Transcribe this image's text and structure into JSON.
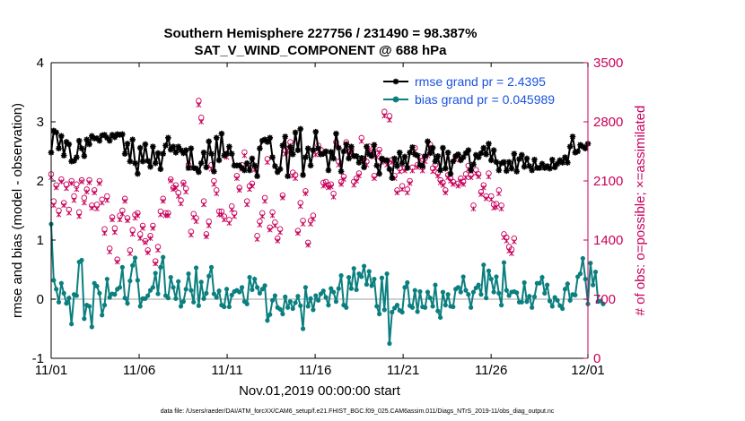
{
  "colors": {
    "rmse": "#000000",
    "bias": "#0b7f7f",
    "obs": "#c8005a",
    "zero": "#bfbfbf",
    "legend_text": "#1a52e0"
  },
  "chart_data": {
    "type": "line",
    "title_line1": "Southern Hemisphere 227756 / 231490 = 98.387%",
    "title_line2": "SAT_V_WIND_COMPONENT @ 688 hPa",
    "xlabel": "Nov.01,2019 00:00:00 start",
    "ylabel_left": "rmse and bias (model - observation)",
    "ylabel_right": "# of obs: o=possible; ×=assimilated",
    "footer": "data file: /Users/raeder/DAI/ATM_forcXX/CAM6_setup/f.e21.FHIST_BGC.f09_025.CAM6assim.011/Diags_NTrS_2019-11/obs_diag_output.nc",
    "xlim": [
      0,
      30.5
    ],
    "ylim_left": [
      -1,
      4
    ],
    "ylim_right": [
      0,
      3500
    ],
    "x_ticks": [
      0,
      5,
      10,
      15,
      20,
      25,
      30.5
    ],
    "x_tick_labels": [
      "11/01",
      "11/06",
      "11/11",
      "11/16",
      "11/21",
      "11/26",
      "12/01"
    ],
    "y_left_ticks": [
      -1,
      0,
      1,
      2,
      3,
      4
    ],
    "y_left_tick_labels": [
      "-1",
      "0",
      "1",
      "2",
      "3",
      "4"
    ],
    "y_right_ticks": [
      0,
      700,
      1400,
      2100,
      2800,
      3500
    ],
    "y_right_tick_labels": [
      "0",
      "700",
      "1400",
      "2100",
      "2800",
      "3500"
    ],
    "legend": [
      {
        "label": "rmse grand pr = 2.4395",
        "series": "rmse"
      },
      {
        "label": "bias grand pr = 0.045989",
        "series": "bias"
      }
    ],
    "series": [
      {
        "name": "rmse",
        "values": [
          2.48,
          2.85,
          2.82,
          2.55,
          2.76,
          2.43,
          2.66,
          2.62,
          2.33,
          2.34,
          2.4,
          2.68,
          2.55,
          2.42,
          2.7,
          2.62,
          2.76,
          2.72,
          2.72,
          2.68,
          2.77,
          2.78,
          2.73,
          2.68,
          2.78,
          2.74,
          2.79,
          2.78,
          2.79,
          2.46,
          2.63,
          2.33,
          2.7,
          2.3,
          2.12,
          2.56,
          2.33,
          2.62,
          2.34,
          2.24,
          2.58,
          2.3,
          2.47,
          2.2,
          2.46,
          2.6,
          2.73,
          2.53,
          2.58,
          2.48,
          2.58,
          2.52,
          2.47,
          2.52,
          2.22,
          2.55,
          2.22,
          2.21,
          2.15,
          2.3,
          2.48,
          2.23,
          2.67,
          2.46,
          2.16,
          2.73,
          2.35,
          2.8,
          2.43,
          2.46,
          2.58,
          2.46,
          2.26,
          2.26,
          2.26,
          2.22,
          2.18,
          2.3,
          2.18,
          2.38,
          2.26,
          2.08,
          2.55,
          2.68,
          2.7,
          2.66,
          2.73,
          2.4,
          2.25,
          2.15,
          2.2,
          2.6,
          2.75,
          2.08,
          2.57,
          2.45,
          2.82,
          2.52,
          2.88,
          2.1,
          2.4,
          2.55,
          2.26,
          2.52,
          2.83,
          2.55,
          2.45,
          2.46,
          2.5,
          2.18,
          2.49,
          2.38,
          2.8,
          2.56,
          2.16,
          2.5,
          2.62,
          2.38,
          2.58,
          2.42,
          2.42,
          2.31,
          2.39,
          2.23,
          2.58,
          2.45,
          2.42,
          2.61,
          2.26,
          2.12,
          2.38,
          2.35,
          2.35,
          2.2,
          2.05,
          2.38,
          2.25,
          2.48,
          2.3,
          2.41,
          2.22,
          2.48,
          2.57,
          2.45,
          2.43,
          2.27,
          2.25,
          2.42,
          2.67,
          2.47,
          2.56,
          2.33,
          2.42,
          2.18,
          2.56,
          2.21,
          2.48,
          2.12,
          2.33,
          2.42,
          2.45,
          2.35,
          2.4,
          2.47,
          2.52,
          2.18,
          2.28,
          2.44,
          2.4,
          2.47,
          2.56,
          2.45,
          2.63,
          2.35,
          2.52,
          2.32,
          2.18,
          2.3,
          2.32,
          2.17,
          2.32,
          2.21,
          2.46,
          2.16,
          2.37,
          2.44,
          2.24,
          2.38,
          2.25,
          2.18,
          2.36,
          2.22,
          2.22,
          2.29,
          2.22,
          2.25,
          2.21,
          2.36,
          2.23,
          2.29,
          2.35,
          2.31,
          2.4,
          2.31,
          2.58,
          2.75,
          2.48,
          2.5,
          2.61,
          2.58,
          2.55,
          2.63
        ]
      },
      {
        "name": "bias",
        "values": [
          1.27,
          0.32,
          0.17,
          -0.05,
          0.27,
          0.1,
          -0.07,
          0.02,
          -0.42,
          0.08,
          0.06,
          0.63,
          0.66,
          -0.33,
          -0.1,
          -0.12,
          -0.47,
          0.27,
          0.22,
          0.1,
          -0.27,
          -0.1,
          0.34,
          0.03,
          0.09,
          0.08,
          0.17,
          0.2,
          0.54,
          0.02,
          -0.07,
          0.31,
          0.57,
          0.7,
          0.32,
          -0.12,
          0.01,
          0.01,
          0.06,
          0.15,
          0.2,
          0.44,
          0.09,
          0.54,
          0.71,
          0.06,
          0.02,
          0.37,
          0.2,
          0.01,
          0.3,
          -0.12,
          -0.04,
          0.17,
          0.43,
          0.15,
          -0.05,
          0.53,
          -0.11,
          0.29,
          0.01,
          0.1,
          0.39,
          0.54,
          0.09,
          0.03,
          0.14,
          -0.1,
          -0.13,
          0.17,
          -0.13,
          0.07,
          0.13,
          0.15,
          0.12,
          0.2,
          -0.04,
          -0.08,
          0.37,
          0.16,
          0.34,
          0.2,
          0.1,
          0.17,
          0.23,
          -0.36,
          -0.26,
          -0.02,
          0.06,
          -0.14,
          -0.17,
          -0.25,
          0.04,
          -0.14,
          -0.04,
          -0.16,
          -0.06,
          0.05,
          -0.11,
          -0.5,
          0.2,
          -0.12,
          0.01,
          -0.18,
          0.06,
          -0.02,
          0.09,
          0.14,
          0.03,
          -0.1,
          0.18,
          0.12,
          -0.04,
          0.18,
          0.4,
          -0.1,
          -0.14,
          0.37,
          0.18,
          0.52,
          0.16,
          0.43,
          0.38,
          0.56,
          0.25,
          0.47,
          0.23,
          0.34,
          -0.12,
          -0.25,
          0.36,
          -0.18,
          0.43,
          -0.75,
          -0.22,
          -0.15,
          -0.1,
          -0.19,
          -0.22,
          0.2,
          0.28,
          -0.11,
          -0.14,
          0.15,
          -0.21,
          0.13,
          -0.13,
          -0.14,
          0.12,
          0.02,
          -0.12,
          0.24,
          -0.2,
          -0.31,
          0.12,
          -0.1,
          0.08,
          -0.12,
          -0.13,
          0.17,
          0.2,
          0.12,
          0.38,
          0.15,
          0.08,
          -0.14,
          0.12,
          0.19,
          0.24,
          0.08,
          0.58,
          0.02,
          0.48,
          0.34,
          0.12,
          0.38,
          0.1,
          -0.1,
          0.62,
          0.15,
          0.06,
          0.12,
          0.13,
          0.11,
          -0.05,
          -0.05,
          0.28,
          -0.04,
          0.05,
          -0.14,
          0.04,
          0.27,
          0.27,
          0.37,
          0.1,
          0.24,
          -0.03,
          -0.12,
          0.03,
          -0.02,
          -0.11,
          -0.16,
          0.17,
          0.26,
          -0.02,
          0.08,
          0.07,
          0.38,
          0.43,
          0.69,
          0.34,
          -0.08,
          0.61,
          0.24,
          0.46,
          -0.04,
          -0.03,
          -0.08
        ]
      },
      {
        "name": "obs_possible",
        "values": [
          2180,
          1860,
          2050,
          1750,
          2120,
          1840,
          2060,
          1760,
          2100,
          1920,
          2060,
          1730,
          2110,
          1900,
          2000,
          2110,
          1810,
          1990,
          1820,
          2100,
          1880,
          1530,
          1920,
          1300,
          1670,
          1540,
          1170,
          1690,
          1750,
          1890,
          1660,
          1280,
          1520,
          1700,
          1720,
          1470,
          1570,
          1390,
          1280,
          1450,
          1570,
          1150,
          1320,
          1740,
          1890,
          1720,
          1720,
          2120,
          2020,
          2050,
          1960,
          1870,
          2080,
          2010,
          2290,
          1500,
          1710,
          1660,
          3050,
          2850,
          1860,
          1470,
          1620,
          2290,
          2100,
          1990,
          1740,
          1740,
          1680,
          2420,
          1640,
          1800,
          1720,
          2160,
          2020,
          2290,
          2440,
          1860,
          2040,
          2070,
          2270,
          1450,
          1620,
          1720,
          1900,
          2360,
          1550,
          1730,
          1610,
          1420,
          1530,
          1930,
          2460,
          2480,
          2560,
          2200,
          2170,
          1510,
          1840,
          1630,
          1980,
          1370,
          1630,
          1690,
          2450,
          2520,
          2470,
          2080,
          2090,
          2050,
          2060,
          1950,
          2560,
          2330,
          2090,
          2150,
          2560,
          2450,
          2470,
          2090,
          2130,
          2190,
          2610,
          2360,
          2330,
          2510,
          2440,
          2160,
          2420,
          2470,
          2360,
          2920,
          2330,
          2870,
          2350,
          2160,
          1990,
          2250,
          2040,
          2250,
          2000,
          2100,
          2260,
          2490,
          2290,
          2390,
          2260,
          2370,
          2440,
          2530,
          2250,
          2290,
          2190,
          2110,
          2080,
          1990,
          2170,
          2130,
          2090,
          2390,
          2070,
          2130,
          2090,
          2180,
          2280,
          2170,
          1810,
          2230,
          2180,
          1970,
          2050,
          1920,
          2190,
          1920,
          1820,
          1830,
          1990,
          1810,
          1470,
          1430,
          1320,
          1290,
          1420
        ]
      },
      {
        "name": "obs_assimilated",
        "values": [
          2140,
          1810,
          2020,
          1700,
          2090,
          1810,
          2010,
          1720,
          2070,
          1870,
          2000,
          1680,
          2090,
          1840,
          1970,
          2080,
          1780,
          1960,
          1770,
          2070,
          1840,
          1480,
          1870,
          1260,
          1640,
          1490,
          1140,
          1640,
          1710,
          1860,
          1630,
          1240,
          1470,
          1660,
          1690,
          1420,
          1540,
          1370,
          1250,
          1420,
          1540,
          1120,
          1280,
          1700,
          1860,
          1690,
          1690,
          2100,
          2000,
          2020,
          1920,
          1830,
          2060,
          1970,
          2250,
          1460,
          1670,
          1620,
          3000,
          2800,
          1820,
          1440,
          1570,
          2240,
          2060,
          1950,
          1700,
          1700,
          1640,
          2380,
          1600,
          1760,
          1680,
          2130,
          1990,
          2240,
          2400,
          1820,
          2000,
          2040,
          2230,
          1410,
          1580,
          1680,
          1860,
          2320,
          1520,
          1690,
          1570,
          1390,
          1490,
          1900,
          2420,
          2440,
          2520,
          2160,
          2130,
          1480,
          1800,
          1590,
          1950,
          1340,
          1590,
          1650,
          2410,
          2480,
          2430,
          2040,
          2060,
          2020,
          2030,
          1910,
          2530,
          2290,
          2060,
          2120,
          2520,
          2410,
          2430,
          2050,
          2100,
          2160,
          2570,
          2330,
          2290,
          2470,
          2410,
          2130,
          2380,
          2440,
          2320,
          2870,
          2290,
          2820,
          2320,
          2130,
          1960,
          2210,
          2000,
          2220,
          1960,
          2070,
          2220,
          2450,
          2260,
          2350,
          2220,
          2330,
          2400,
          2500,
          2210,
          2250,
          2160,
          2080,
          2050,
          1960,
          2140,
          2100,
          2060,
          2350,
          2040,
          2100,
          2060,
          2140,
          2240,
          2140,
          1770,
          2190,
          2150,
          1940,
          2020,
          1890,
          2150,
          1880,
          1780,
          1790,
          1950,
          1770,
          1430,
          1390,
          1270,
          1240,
          1380
        ]
      }
    ]
  }
}
